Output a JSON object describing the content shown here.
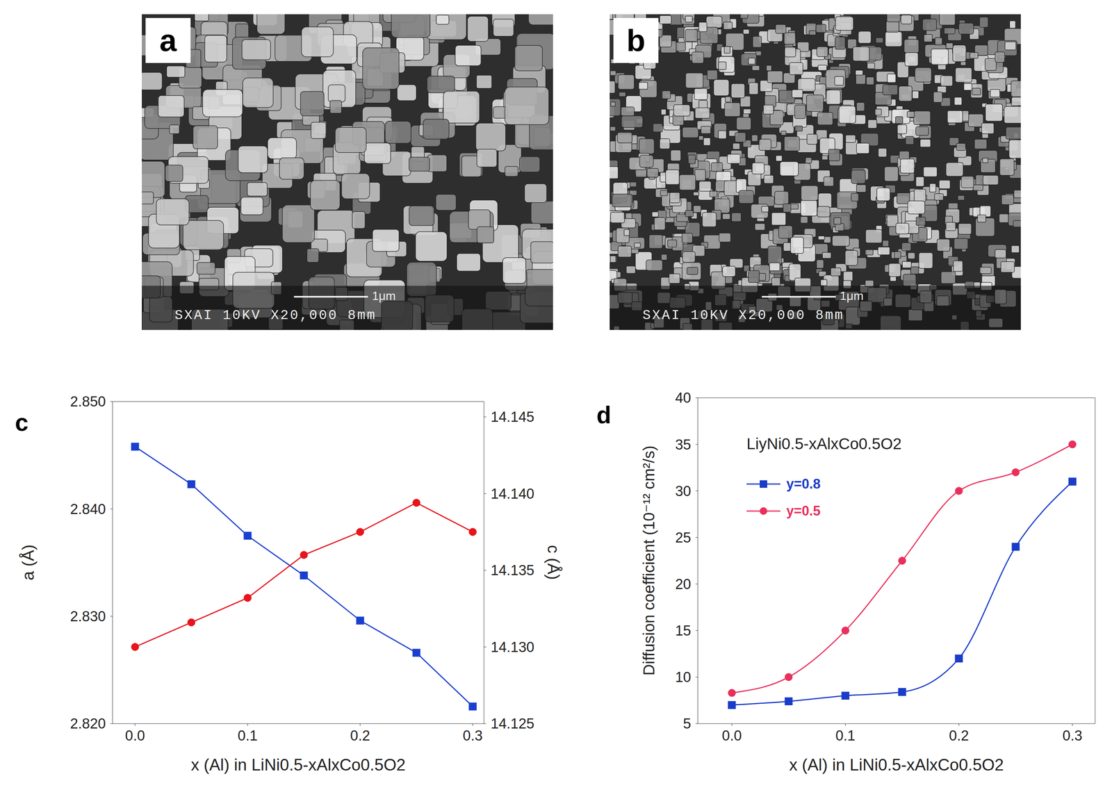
{
  "images": [
    {
      "label": "a",
      "info": "SXAI 10KV X20,000 8mm",
      "scale_bar": "1μm"
    },
    {
      "label": "b",
      "info": "SXAI 10KV X20,000 8mm",
      "scale_bar": "1μm"
    }
  ],
  "chart_data": [
    {
      "label": "c",
      "type": "line",
      "x_label": "x (Al) in LiNi0.5-xAlxCo0.5O2",
      "y_label": "a (Å)",
      "y2_label": "c (Å)",
      "x": [
        0,
        0.05,
        0.1,
        0.15,
        0.2,
        0.25,
        0.3
      ],
      "xlim": [
        -0.02,
        0.31
      ],
      "xticks": [
        {
          "value": 0,
          "label": "0.0"
        },
        0.1,
        0.2,
        0.3
      ],
      "ylim": [
        2.82,
        2.85
      ],
      "yticks": [
        {
          "value": 2.82,
          "label": "2.820"
        },
        {
          "value": 2.83,
          "label": "2.830"
        },
        {
          "value": 2.84,
          "label": "2.840"
        },
        {
          "value": 2.85,
          "label": "2.850"
        }
      ],
      "y2lim": [
        14.125,
        14.146
      ],
      "y2ticks": [
        14.125,
        {
          "value": 14.13,
          "label": "14.130"
        },
        14.135,
        {
          "value": 14.14,
          "label": "14.140"
        },
        14.145
      ],
      "series": [
        {
          "color": "#1a3fd0",
          "marker": "square",
          "line_style": "solid",
          "values": [
            2.8458,
            2.8423,
            2.8375,
            2.8338,
            2.8296,
            2.8266,
            2.8216
          ]
        },
        {
          "color": "#e8141c",
          "marker": "circle",
          "line_style": "solid",
          "axis": "y2",
          "values": [
            14.13,
            14.1316,
            14.1332,
            14.136,
            14.1375,
            14.1394,
            14.1375
          ]
        }
      ]
    },
    {
      "label": "d",
      "type": "line",
      "annotation": "LiyNi0.5-xAlxCo0.5O2",
      "x_label": "x (Al) in LiNi0.5-xAlxCo0.5O2",
      "y_label": "Diffusion coefficient (10⁻¹² cm²/s)",
      "x": [
        0,
        0.05,
        0.1,
        0.15,
        0.2,
        0.25,
        0.3
      ],
      "xlim": [
        -0.03,
        0.32
      ],
      "xticks": [
        {
          "value": 0,
          "label": "0.0"
        },
        0.1,
        0.2,
        0.3
      ],
      "ylim": [
        5,
        40
      ],
      "yticks": [
        5,
        10,
        15,
        20,
        25,
        30,
        35,
        40
      ],
      "legend": "upper left",
      "series": [
        {
          "name": "y=0.8",
          "color": "#1a3cc8",
          "marker": "square",
          "line_style": "smooth",
          "values": [
            7,
            7.4,
            8,
            8.4,
            12,
            24,
            31
          ]
        },
        {
          "name": "y=0.5",
          "color": "#ea2f5c",
          "marker": "circle",
          "line_style": "smooth",
          "values": [
            8.3,
            10,
            15,
            22.5,
            30,
            32,
            35
          ]
        }
      ]
    }
  ]
}
